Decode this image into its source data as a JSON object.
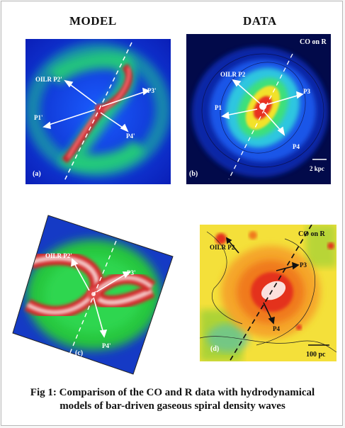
{
  "headers": {
    "model": "MODEL",
    "data": "DATA"
  },
  "panels": {
    "a": {
      "letter": "(a)",
      "labels": {
        "oilr": "OILR P2'",
        "p3": "P3'",
        "p1": "P1'",
        "p4": "P4'"
      }
    },
    "b": {
      "letter": "(b)",
      "title": "CO on R",
      "scale": "2 kpc",
      "labels": {
        "oilr": "OILR P2",
        "p3": "P3",
        "p1": "P1",
        "p4": "P4"
      }
    },
    "c": {
      "letter": "(c)",
      "labels": {
        "oilr": "OILR P2'",
        "p3": "P3'",
        "p4": "P4'"
      }
    },
    "d": {
      "letter": "(d)",
      "title": "CO on R",
      "scale": "100 pc",
      "labels": {
        "oilr": "OILR P2",
        "p3": "P3",
        "p4": "P4"
      }
    }
  },
  "caption": {
    "line1": "Fig 1: Comparison of the CO and R data with  hydrodynamical",
    "line2": "models of bar-driven gaseous spiral density waves"
  }
}
